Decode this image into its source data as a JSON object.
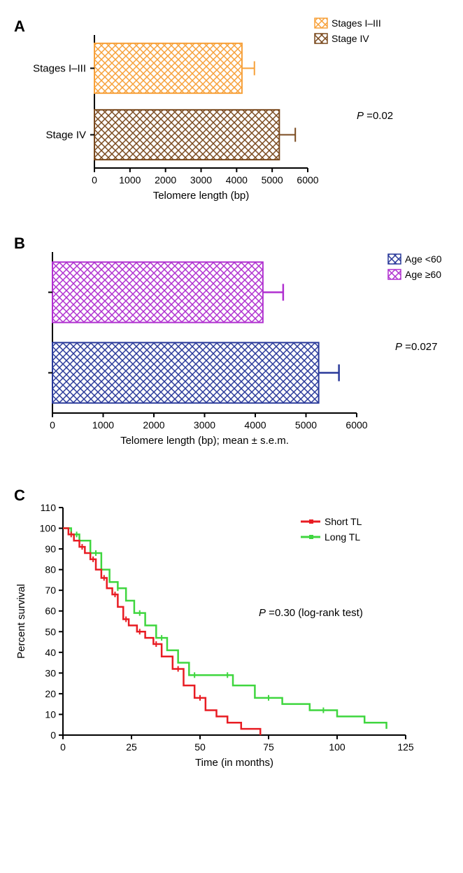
{
  "panelA": {
    "label": "A",
    "type": "horizontal_bar",
    "bars": [
      {
        "category": "Stages I–III",
        "value": 4150,
        "error": 350,
        "fill": "#f7a13a",
        "stroke": "#f7a13a"
      },
      {
        "category": "Stage IV",
        "value": 5200,
        "error": 450,
        "fill": "#7a4a1f",
        "stroke": "#7a4a1f"
      }
    ],
    "legend": [
      {
        "label": "Stages I–III",
        "fill": "#f7a13a"
      },
      {
        "label": "Stage IV",
        "fill": "#7a4a1f"
      }
    ],
    "xlabel": "Telomere length (bp)",
    "xlim": [
      0,
      6000
    ],
    "xtick_step": 1000,
    "p_value": "P =0.02",
    "p_value_italic": "P",
    "label_fontsize": 15,
    "tick_fontsize": 14,
    "axis_color": "#000000",
    "background": "#ffffff",
    "pattern": "crosshatch",
    "bar_height_ratio": 0.75
  },
  "panelB": {
    "label": "B",
    "type": "horizontal_bar",
    "bars": [
      {
        "category": "Age ≥60",
        "value": 4150,
        "error": 400,
        "fill": "#b030d0",
        "stroke": "#b030d0"
      },
      {
        "category": "Age <60",
        "value": 5250,
        "error": 400,
        "fill": "#2a3a9a",
        "stroke": "#2a3a9a"
      }
    ],
    "legend": [
      {
        "label": "Age <60",
        "fill": "#2a3a9a"
      },
      {
        "label": "Age ≥60",
        "fill": "#b030d0"
      }
    ],
    "xlabel": "Telomere length (bp); mean ± s.e.m.",
    "xlim": [
      0,
      6000
    ],
    "xtick_step": 1000,
    "p_value": "P =0.027",
    "p_value_italic": "P",
    "label_fontsize": 15,
    "tick_fontsize": 14,
    "axis_color": "#000000",
    "background": "#ffffff",
    "pattern": "crosshatch",
    "bar_height_ratio": 0.75
  },
  "panelC": {
    "label": "C",
    "type": "survival_step",
    "xlabel": "Time (in months)",
    "ylabel": "Percent survival",
    "xlim": [
      0,
      125
    ],
    "ylim": [
      0,
      110
    ],
    "xtick_step": 25,
    "ytick_step": 10,
    "axis_color": "#000000",
    "background": "#ffffff",
    "line_width": 2.5,
    "marker_size": 3,
    "label_fontsize": 15,
    "tick_fontsize": 14,
    "p_value": "P =0.30 (log-rank test)",
    "p_value_italic": "P",
    "legend": [
      {
        "label": "Short TL",
        "color": "#e81c23"
      },
      {
        "label": "Long TL",
        "color": "#3fd63f"
      }
    ],
    "series": {
      "short": {
        "color": "#e81c23",
        "points": [
          [
            0,
            100
          ],
          [
            2,
            97
          ],
          [
            4,
            94
          ],
          [
            6,
            91
          ],
          [
            8,
            88
          ],
          [
            10,
            85
          ],
          [
            12,
            80
          ],
          [
            14,
            76
          ],
          [
            16,
            71
          ],
          [
            18,
            68
          ],
          [
            20,
            62
          ],
          [
            22,
            56
          ],
          [
            24,
            53
          ],
          [
            27,
            50
          ],
          [
            30,
            47
          ],
          [
            33,
            44
          ],
          [
            36,
            38
          ],
          [
            40,
            32
          ],
          [
            44,
            24
          ],
          [
            48,
            18
          ],
          [
            52,
            12
          ],
          [
            56,
            9
          ],
          [
            60,
            6
          ],
          [
            65,
            3
          ],
          [
            72,
            0
          ]
        ],
        "ticks": [
          3,
          7,
          11,
          15,
          19,
          23,
          28,
          34,
          42,
          50
        ]
      },
      "long": {
        "color": "#3fd63f",
        "points": [
          [
            0,
            100
          ],
          [
            3,
            97
          ],
          [
            6,
            94
          ],
          [
            10,
            88
          ],
          [
            14,
            80
          ],
          [
            17,
            74
          ],
          [
            20,
            71
          ],
          [
            23,
            65
          ],
          [
            26,
            59
          ],
          [
            30,
            53
          ],
          [
            34,
            47
          ],
          [
            38,
            41
          ],
          [
            42,
            35
          ],
          [
            46,
            29
          ],
          [
            55,
            29
          ],
          [
            62,
            24
          ],
          [
            70,
            18
          ],
          [
            80,
            15
          ],
          [
            90,
            12
          ],
          [
            100,
            9
          ],
          [
            110,
            6
          ],
          [
            118,
            3
          ]
        ],
        "ticks": [
          5,
          12,
          20,
          28,
          36,
          48,
          60,
          75,
          95
        ]
      }
    }
  }
}
